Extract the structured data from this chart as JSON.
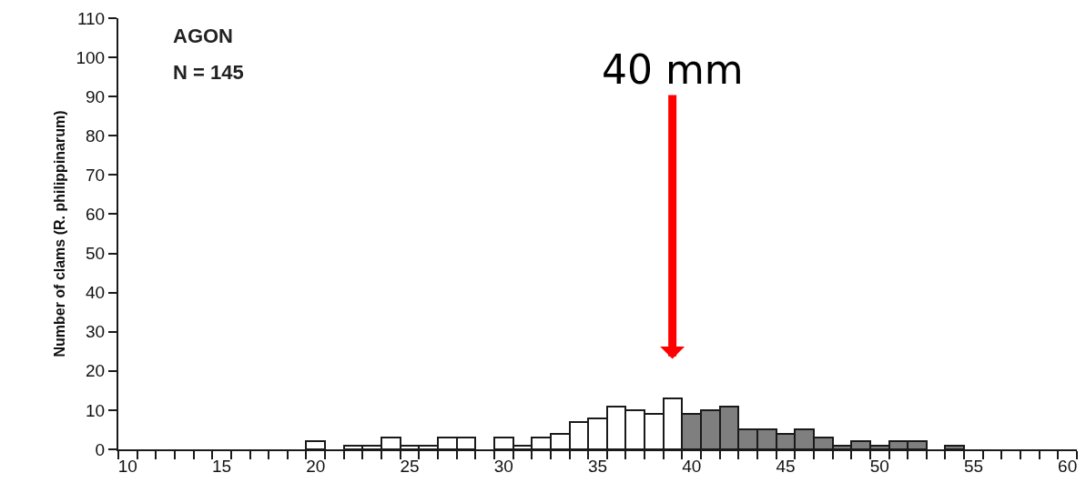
{
  "chart_data": {
    "type": "histogram",
    "ylabel": "Number of clams (R. philippinarum)",
    "bins": [
      9.5,
      10.5,
      11.5,
      12.5,
      13.5,
      14.5,
      15.5,
      16.5,
      17.5,
      18.5,
      19.5,
      20.5,
      21.5,
      22.5,
      23.5,
      24.5,
      25.5,
      26.5,
      27.5,
      28.5,
      29.5,
      30.5,
      31.5,
      32.5,
      33.5,
      34.5,
      35.5,
      36.5,
      37.5,
      38.5,
      39.5,
      40.5,
      41.5,
      42.5,
      43.5,
      44.5,
      45.5,
      46.5,
      47.5,
      48.5,
      49.5,
      50.5,
      51.5,
      52.5,
      53.5,
      54.5,
      55.5,
      56.5,
      57.5,
      58.5,
      59.5,
      60.5
    ],
    "values": [
      0,
      0,
      0,
      0,
      0,
      0,
      0,
      0,
      0,
      0,
      2,
      0,
      1,
      1,
      3,
      1,
      1,
      3,
      3,
      0,
      3,
      1,
      3,
      4,
      7,
      8,
      11,
      10,
      9,
      13,
      9,
      10,
      11,
      5,
      5,
      4,
      5,
      3,
      1,
      2,
      1,
      2,
      2,
      0,
      1,
      0,
      0,
      0,
      0,
      0,
      0
    ],
    "colors": [
      "#ffffff",
      "#ffffff",
      "#ffffff",
      "#ffffff",
      "#ffffff",
      "#ffffff",
      "#ffffff",
      "#ffffff",
      "#ffffff",
      "#ffffff",
      "#ffffff",
      "#ffffff",
      "#ffffff",
      "#ffffff",
      "#ffffff",
      "#ffffff",
      "#ffffff",
      "#ffffff",
      "#ffffff",
      "#ffffff",
      "#ffffff",
      "#ffffff",
      "#ffffff",
      "#ffffff",
      "#ffffff",
      "#ffffff",
      "#ffffff",
      "#ffffff",
      "#ffffff",
      "#ffffff",
      "#7f7f7f",
      "#7f7f7f",
      "#7f7f7f",
      "#7f7f7f",
      "#7f7f7f",
      "#7f7f7f",
      "#7f7f7f",
      "#7f7f7f",
      "#7f7f7f",
      "#7f7f7f",
      "#7f7f7f",
      "#7f7f7f",
      "#7f7f7f",
      "#7f7f7f",
      "#7f7f7f",
      "#7f7f7f",
      "#7f7f7f",
      "#7f7f7f",
      "#7f7f7f",
      "#7f7f7f",
      "#7f7f7f"
    ],
    "xlim": [
      9.5,
      60.5
    ],
    "xticks": [
      10,
      15,
      20,
      25,
      30,
      35,
      40,
      45,
      50,
      55,
      60
    ],
    "ylim": [
      0,
      110
    ],
    "yticks": [
      0,
      10,
      20,
      30,
      40,
      50,
      60,
      70,
      80,
      90,
      100,
      110
    ],
    "annotations": [
      "AGON",
      "N = 145",
      "40 mm"
    ]
  }
}
